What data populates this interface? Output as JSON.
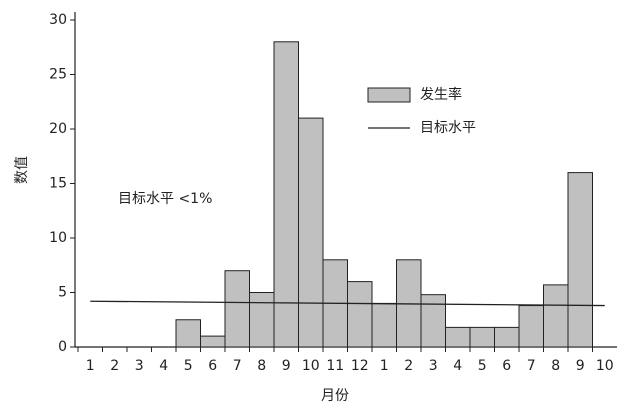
{
  "chart_data": {
    "type": "bar",
    "x_label": "月份",
    "y_label": "数值",
    "annotation": "目标水平 <1%",
    "categories": [
      "1",
      "2",
      "3",
      "4",
      "5",
      "6",
      "7",
      "8",
      "9",
      "10",
      "11",
      "12",
      "1",
      "2",
      "3",
      "4",
      "5",
      "6",
      "7",
      "8",
      "9",
      "10"
    ],
    "series": [
      {
        "name": "发生率",
        "color": "#c0c0c0",
        "values": [
          null,
          null,
          null,
          null,
          2.5,
          1,
          7,
          5,
          28,
          21,
          8,
          6,
          4,
          8,
          4.8,
          1.8,
          1.8,
          1.8,
          3.8,
          5.7,
          16,
          null
        ]
      }
    ],
    "target": {
      "name": "目标水平",
      "color": "#222222",
      "values": [
        4.2,
        3.8
      ]
    },
    "ylim": [
      0,
      30
    ],
    "yticks": [
      0,
      5,
      10,
      15,
      20,
      25,
      30
    ]
  }
}
